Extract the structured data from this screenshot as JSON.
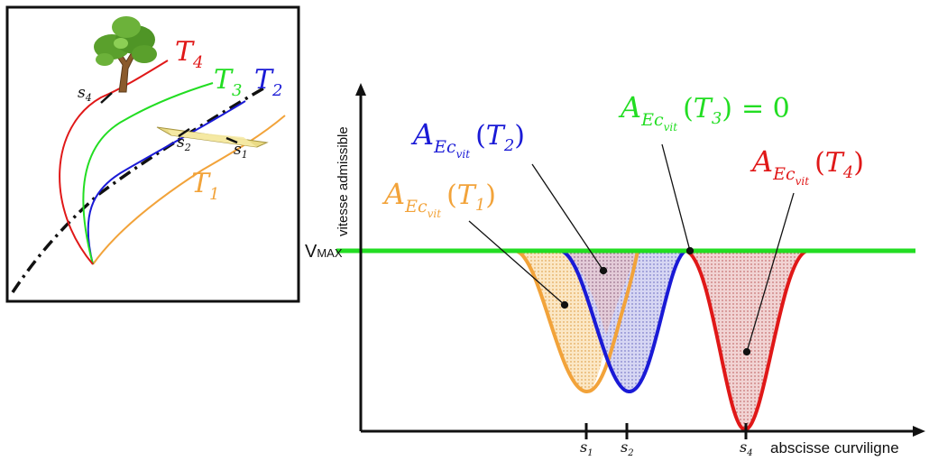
{
  "colors": {
    "T1": "#f2a33a",
    "T2": "#1a1ad6",
    "T3": "#22dd22",
    "T4": "#e01818",
    "axis": "#111111",
    "tree_canopy": "#5aa02c",
    "tree_trunk": "#8a5a2b",
    "obstacle": "#e8d77a"
  },
  "left_panel": {
    "labels": {
      "T1": {
        "main": "T",
        "sub": "1"
      },
      "T2": {
        "main": "T",
        "sub": "2"
      },
      "T3": {
        "main": "T",
        "sub": "3"
      },
      "T4": {
        "main": "T",
        "sub": "4"
      }
    },
    "marks": {
      "s1": {
        "main": "s",
        "sub": "1"
      },
      "s2": {
        "main": "s",
        "sub": "2"
      },
      "s4": {
        "main": "s",
        "sub": "4"
      }
    },
    "icons": [
      "tree-icon",
      "obstacle-icon"
    ]
  },
  "right_panel": {
    "y_axis_label": "vitesse admissible",
    "x_axis_label": "abscisse curviligne",
    "vmax": {
      "main": "V",
      "small": "MAX"
    },
    "ticks": [
      {
        "main": "s",
        "sub": "1"
      },
      {
        "main": "s",
        "sub": "2"
      },
      {
        "main": "s",
        "sub": "4"
      }
    ],
    "annotations": {
      "T1": {
        "A": "A",
        "sub": "Ec",
        "subsub": "vit",
        "arg_main": "T",
        "arg_sub": "1",
        "open": "(",
        "close": ")"
      },
      "T2": {
        "A": "A",
        "sub": "Ec",
        "subsub": "vit",
        "arg_main": "T",
        "arg_sub": "2",
        "open": "(",
        "close": ")"
      },
      "T3": {
        "A": "A",
        "sub": "Ec",
        "subsub": "vit",
        "arg_main": "T",
        "arg_sub": "3",
        "open": "(",
        "close": ")",
        "suffix": "= 0"
      },
      "T4": {
        "A": "A",
        "sub": "Ec",
        "subsub": "vit",
        "arg_main": "T",
        "arg_sub": "4",
        "open": "(",
        "close": ")"
      }
    }
  }
}
